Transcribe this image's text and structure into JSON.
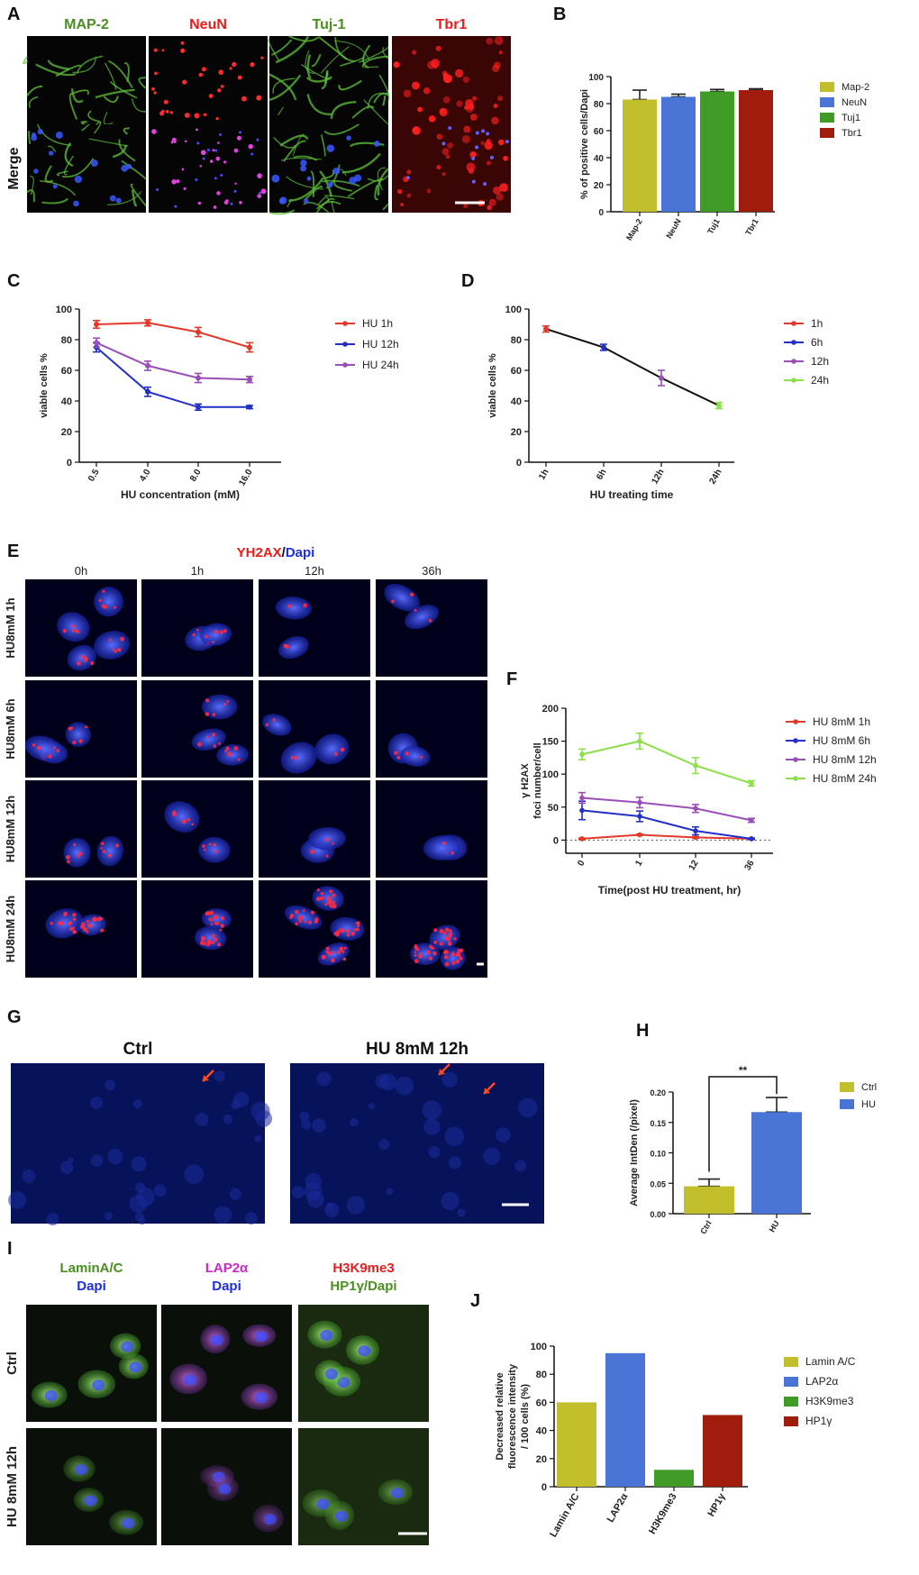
{
  "colors": {
    "olive": "#c2bf2c",
    "blue": "#4a75d6",
    "green": "#3f9a26",
    "darkred": "#a01c0c",
    "red": "#e4392a",
    "navy": "#2330c8",
    "purple": "#9a4fb8",
    "lime": "#8ce04a",
    "black": "#111111",
    "labelGreen": "#4a8f1f",
    "labelRed": "#e81c1c",
    "labelBlue": "#1c2ee0",
    "labelMagenta": "#cc28cc"
  },
  "panels": {
    "A": {
      "letter": "A",
      "columns": [
        "MAP-2",
        "NeuN",
        "Tuj-1",
        "Tbr1"
      ],
      "row_label": "Merge",
      "tiles": [
        {
          "name": "map2",
          "row": 0,
          "col": 0,
          "kind": "map2"
        },
        {
          "name": "neun",
          "row": 0,
          "col": 1,
          "kind": "neun"
        },
        {
          "name": "tuj1",
          "row": 0,
          "col": 2,
          "kind": "tuj1"
        },
        {
          "name": "tbr1",
          "row": 0,
          "col": 3,
          "kind": "tbr1"
        },
        {
          "name": "map2-merge",
          "row": 1,
          "col": 0,
          "kind": "map2m"
        },
        {
          "name": "neun-merge",
          "row": 1,
          "col": 1,
          "kind": "neunm"
        },
        {
          "name": "tuj1-merge",
          "row": 1,
          "col": 2,
          "kind": "tuj1m"
        },
        {
          "name": "tbr1-merge",
          "row": 1,
          "col": 3,
          "kind": "tbr1m"
        }
      ]
    },
    "E": {
      "letter": "E",
      "title_red": "YH2AX",
      "title_sep": "/",
      "title_blue": "Dapi",
      "columns": [
        "0h",
        "1h",
        "12h",
        "36h"
      ],
      "rows": [
        "HU8mM 1h",
        "HU8mM 6h",
        "HU8mM 12h",
        "HU8mM 24h"
      ]
    },
    "G": {
      "letter": "G",
      "labels": [
        "Ctrl",
        "HU 8mM 12h"
      ]
    },
    "I": {
      "letter": "I",
      "col_headers": [
        {
          "lines": [
            {
              "text": "LaminA/C",
              "color": "labelGreen"
            },
            {
              "text": "Dapi",
              "color": "labelBlue"
            }
          ]
        },
        {
          "lines": [
            {
              "text": "LAP2α",
              "color": "labelMagenta"
            },
            {
              "text": "Dapi",
              "color": "labelBlue"
            }
          ]
        },
        {
          "lines": [
            {
              "text": "H3K9me3",
              "color": "labelRed"
            },
            {
              "text": "HP1γ/Dapi",
              "color": "labelGreen"
            }
          ]
        }
      ],
      "rows": [
        "Ctrl",
        "HU 8mM 12h"
      ]
    }
  },
  "chart_data": [
    {
      "panel": "B",
      "type": "bar",
      "categories": [
        "Map-2",
        "NeuN",
        "Tuj1",
        "Tbr1"
      ],
      "values": [
        83,
        85,
        89,
        90
      ],
      "errors": [
        7,
        2,
        1.5,
        1
      ],
      "colors": [
        "olive",
        "blue",
        "green",
        "darkred"
      ],
      "ylabel": "% of positive cells/Dapi",
      "ylim": [
        0,
        100
      ],
      "yticks": [
        0,
        20,
        40,
        60,
        80,
        100
      ],
      "legend": [
        "Map-2",
        "NeuN",
        "Tuj1",
        "Tbr1"
      ]
    },
    {
      "panel": "C",
      "type": "line",
      "categories": [
        "0.5",
        "4.0",
        "8.0",
        "16.0"
      ],
      "series": [
        {
          "name": "HU 1h",
          "color": "red",
          "values": [
            90,
            91,
            85,
            75
          ],
          "errors": [
            2.5,
            2,
            3,
            3
          ]
        },
        {
          "name": "HU 12h",
          "color": "navy",
          "values": [
            75,
            46,
            36,
            36
          ],
          "errors": [
            3,
            3,
            2,
            1
          ]
        },
        {
          "name": "HU 24h",
          "color": "purple",
          "values": [
            78,
            63,
            55,
            54
          ],
          "errors": [
            3,
            3,
            3,
            2
          ]
        }
      ],
      "xlabel": "HU concentration (mM)",
      "ylabel": "viable cells %",
      "ylim": [
        0,
        100
      ],
      "yticks": [
        0,
        20,
        40,
        60,
        80,
        100
      ]
    },
    {
      "panel": "D",
      "type": "line",
      "categories": [
        "1h",
        "6h",
        "12h",
        "24h"
      ],
      "points": [
        {
          "name": "1h",
          "color": "red",
          "value": 87,
          "error": 2
        },
        {
          "name": "6h",
          "color": "navy",
          "value": 75,
          "error": 2
        },
        {
          "name": "12h",
          "color": "purple",
          "value": 55,
          "error": 5
        },
        {
          "name": "24h",
          "color": "lime",
          "value": 37,
          "error": 2
        }
      ],
      "xlabel": "HU treating time",
      "ylabel": "viable cells %",
      "ylim": [
        0,
        100
      ],
      "yticks": [
        0,
        20,
        40,
        60,
        80,
        100
      ],
      "legend": [
        "1h",
        "6h",
        "12h",
        "24h"
      ]
    },
    {
      "panel": "F",
      "type": "line",
      "categories": [
        "0",
        "1",
        "12",
        "36"
      ],
      "series": [
        {
          "name": "HU 8mM 1h",
          "color": "red",
          "values": [
            2,
            8,
            4,
            2
          ],
          "errors": [
            1,
            1,
            1,
            1
          ]
        },
        {
          "name": "HU 8mM 6h",
          "color": "navy",
          "values": [
            45,
            36,
            14,
            2
          ],
          "errors": [
            14,
            8,
            6,
            1
          ]
        },
        {
          "name": "HU 8mM 12h",
          "color": "purple",
          "values": [
            64,
            57,
            48,
            30
          ],
          "errors": [
            8,
            8,
            6,
            3
          ]
        },
        {
          "name": "HU 8mM 24h",
          "color": "lime",
          "values": [
            130,
            150,
            113,
            86
          ],
          "errors": [
            8,
            12,
            12,
            4
          ]
        }
      ],
      "xlabel": "Time(post HU treatment, hr)",
      "ylabel": "γ H2AX",
      "ylabel2": "foci number/cell",
      "ylim": [
        -20,
        200
      ],
      "yticks": [
        0,
        50,
        100,
        150,
        200
      ]
    },
    {
      "panel": "H",
      "type": "bar",
      "categories": [
        "Ctrl",
        "HU"
      ],
      "values": [
        0.045,
        0.167
      ],
      "errors": [
        0.012,
        0.024
      ],
      "colors": [
        "olive",
        "blue"
      ],
      "ylabel": "Average IntDen (/pixel)",
      "ylim": [
        0,
        0.2
      ],
      "yticks": [
        "0.00",
        "0.05",
        "0.10",
        "0.15",
        "0.20"
      ],
      "significance": "**",
      "legend": [
        "Ctrl",
        "HU"
      ]
    },
    {
      "panel": "J",
      "type": "bar",
      "categories": [
        "Lamin A/C",
        "LAP2α",
        "H3K9me3",
        "HP1γ"
      ],
      "values": [
        60,
        95,
        12,
        51
      ],
      "colors": [
        "olive",
        "blue",
        "green",
        "darkred"
      ],
      "ylabel": "Decreased relative",
      "ylabel2": "fluorescence intensity",
      "ylabel3": "/ 100 cells (%)",
      "ylim": [
        0,
        100
      ],
      "yticks": [
        0,
        20,
        40,
        60,
        80,
        100
      ],
      "legend": [
        "Lamin A/C",
        "LAP2α",
        "H3K9me3",
        "HP1γ"
      ]
    }
  ]
}
